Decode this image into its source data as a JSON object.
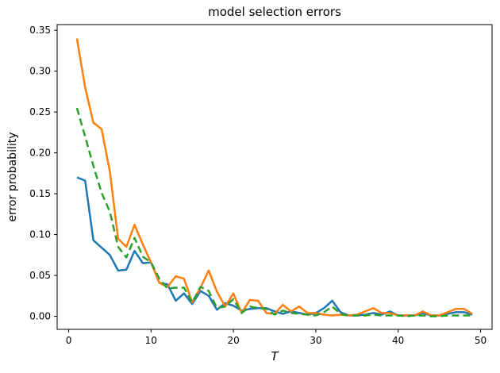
{
  "figure": {
    "background": "#ffffff",
    "spine_color": "#000000"
  },
  "chart_data": {
    "type": "line",
    "title": "model selection errors",
    "xlabel": "T",
    "ylabel": "error probability",
    "grid": false,
    "legend": null,
    "xlim": [
      -1.4,
      51.4
    ],
    "ylim": [
      -0.016,
      0.357
    ],
    "x_ticks": [
      0,
      10,
      20,
      30,
      40,
      50
    ],
    "y_ticks": [
      {
        "value": 0.0,
        "label": "0.00"
      },
      {
        "value": 0.05,
        "label": "0.05"
      },
      {
        "value": 0.1,
        "label": "0.10"
      },
      {
        "value": 0.15,
        "label": "0.15"
      },
      {
        "value": 0.2,
        "label": "0.20"
      },
      {
        "value": 0.25,
        "label": "0.25"
      },
      {
        "value": 0.3,
        "label": "0.30"
      },
      {
        "value": 0.35,
        "label": "0.35"
      }
    ],
    "x": [
      1,
      2,
      3,
      4,
      5,
      6,
      7,
      8,
      9,
      10,
      11,
      12,
      13,
      14,
      15,
      16,
      17,
      18,
      19,
      20,
      21,
      22,
      23,
      24,
      25,
      26,
      27,
      28,
      29,
      30,
      31,
      32,
      33,
      34,
      35,
      36,
      37,
      38,
      39,
      40,
      41,
      42,
      43,
      44,
      45,
      46,
      47,
      48,
      49
    ],
    "series": [
      {
        "name": "series-blue",
        "color": "#1f77b4",
        "style": "solid",
        "values": [
          0.17,
          0.166,
          0.093,
          0.084,
          0.075,
          0.056,
          0.057,
          0.08,
          0.065,
          0.066,
          0.041,
          0.039,
          0.019,
          0.028,
          0.015,
          0.031,
          0.025,
          0.008,
          0.016,
          0.013,
          0.007,
          0.009,
          0.01,
          0.01,
          0.006,
          0.003,
          0.006,
          0.004,
          0.002,
          0.004,
          0.01,
          0.019,
          0.005,
          0.001,
          0.001,
          0.002,
          0.004,
          0.002,
          0.006,
          0.001,
          0.001,
          0.001,
          0.004,
          0.001,
          0.001,
          0.003,
          0.005,
          0.005,
          0.002
        ]
      },
      {
        "name": "series-orange",
        "color": "#ff7f0e",
        "style": "solid",
        "values": [
          0.34,
          0.28,
          0.237,
          0.229,
          0.177,
          0.095,
          0.085,
          0.112,
          0.088,
          0.066,
          0.041,
          0.036,
          0.049,
          0.046,
          0.017,
          0.035,
          0.056,
          0.03,
          0.012,
          0.028,
          0.004,
          0.02,
          0.019,
          0.004,
          0.003,
          0.014,
          0.006,
          0.012,
          0.004,
          0.004,
          0.002,
          0.001,
          0.002,
          0.001,
          0.002,
          0.006,
          0.01,
          0.004,
          0.004,
          0.001,
          0.001,
          0.001,
          0.006,
          0.001,
          0.001,
          0.005,
          0.009,
          0.009,
          0.003
        ]
      },
      {
        "name": "series-green-dashed",
        "color": "#2ca02c",
        "style": "dashed",
        "values": [
          0.255,
          0.22,
          0.184,
          0.151,
          0.128,
          0.085,
          0.072,
          0.096,
          0.073,
          0.066,
          0.046,
          0.034,
          0.035,
          0.035,
          0.017,
          0.036,
          0.031,
          0.01,
          0.012,
          0.021,
          0.004,
          0.012,
          0.01,
          0.009,
          0.002,
          0.007,
          0.004,
          0.003,
          0.002,
          0.001,
          0.005,
          0.012,
          0.003,
          0.001,
          0.001,
          0.001,
          0.002,
          0.001,
          0.001,
          0.001,
          0.0,
          0.001,
          0.001,
          0.0,
          0.0,
          0.001,
          0.001,
          0.001,
          0.001
        ]
      }
    ]
  }
}
